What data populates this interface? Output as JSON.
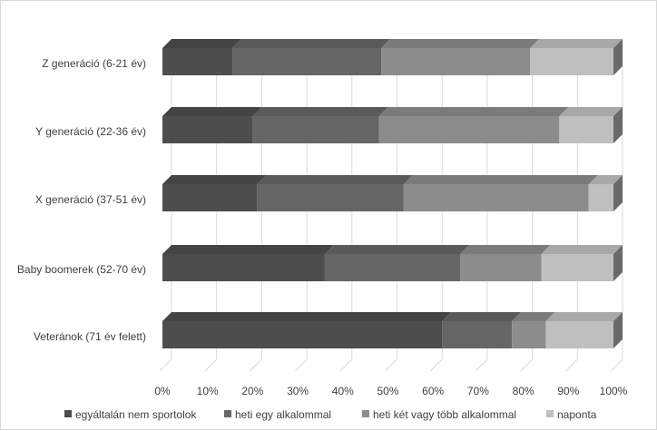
{
  "chart_data": {
    "type": "bar",
    "orientation": "horizontal",
    "stacked": "100%",
    "style": "3d",
    "categories": [
      "Z generáció (6-21 év)",
      "Y generáció (22-36 év)",
      "X generáció (37-51 év)",
      "Baby boomerek (52-70 év)",
      "Veteránok (71 év felett)"
    ],
    "series": [
      {
        "name": "egyáltalán nem sportolok",
        "color": "#4d4d4d",
        "values": [
          15.5,
          20,
          21,
          36,
          62
        ]
      },
      {
        "name": "heti egy alkalommal",
        "color": "#666666",
        "values": [
          33,
          28,
          32.5,
          30,
          15.5
        ]
      },
      {
        "name": "heti két vagy több alkalommal",
        "color": "#8c8c8c",
        "values": [
          33,
          40,
          41,
          18,
          7.5
        ]
      },
      {
        "name": "naponta",
        "color": "#bfbfbf",
        "values": [
          18.5,
          12,
          5.5,
          16,
          15
        ]
      }
    ],
    "xlim": [
      0,
      100
    ],
    "ticks": [
      "0%",
      "10%",
      "20%",
      "30%",
      "40%",
      "50%",
      "60%",
      "70%",
      "80%",
      "90%",
      "100%"
    ],
    "grid": true,
    "legend_position": "bottom",
    "title": "",
    "xlabel": "",
    "ylabel": ""
  }
}
